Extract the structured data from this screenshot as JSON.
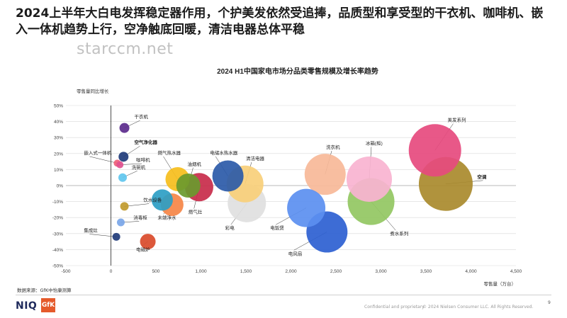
{
  "headline": "2024上半年大白电发挥稳定器作用，个护美发依然受追捧，品质型和享受型的干衣机、咖啡机、嵌入一体机趋势上行，空净触底回暖，清洁电器总体平稳",
  "watermark": "starccm.net",
  "source": "数据来源：GfK中怡康测算",
  "footer": {
    "logo_niq": "NIQ",
    "logo_gfk": "GfK",
    "confidential": "Confidential and proprietary",
    "copyright": "© 2024 Nielsen Consumer LLC. All Rights Reserved.",
    "page_number": "9"
  },
  "chart_data": {
    "type": "scatter",
    "title": "2024 H1中国家电市场分品类零售规模及增长率趋势",
    "xlabel": "零售量（万台）",
    "ylabel": "零售量同比增长",
    "xlim": [
      -500,
      4500
    ],
    "ylim": [
      -50,
      50
    ],
    "x_ticks": [
      "-500",
      "0",
      "500",
      "1,000",
      "1,500",
      "2,000",
      "2,500",
      "3,000",
      "3,500",
      "4,000",
      "4,500"
    ],
    "y_ticks": [
      "50%",
      "40%",
      "30%",
      "20%",
      "10%",
      "0%",
      "-10%",
      "-20%",
      "-30%",
      "-40%",
      "-50%"
    ],
    "grid": "horizontal",
    "points": [
      {
        "label": "干衣机",
        "x": 150,
        "y": 36,
        "size": 14,
        "color": "#5b2a8c",
        "bold": false
      },
      {
        "label": "空气净化器",
        "x": 140,
        "y": 18,
        "size": 14,
        "color": "#1f3b7a",
        "bold": true
      },
      {
        "label": "嵌入式一体机",
        "x": 70,
        "y": 14,
        "size": 10,
        "color": "#f0607a",
        "bold": false
      },
      {
        "label": "咖啡机",
        "x": 100,
        "y": 13,
        "size": 10,
        "color": "#e0508f",
        "bold": false
      },
      {
        "label": "洗碗机",
        "x": 130,
        "y": 5,
        "size": 12,
        "color": "#5fc6ee",
        "bold": false
      },
      {
        "label": "饮水设备",
        "x": 150,
        "y": -13,
        "size": 12,
        "color": "#c09a2e",
        "bold": false
      },
      {
        "label": "消毒柜",
        "x": 110,
        "y": -23,
        "size": 11,
        "color": "#7aa6e8",
        "bold": false
      },
      {
        "label": "集成灶",
        "x": 60,
        "y": -32,
        "size": 11,
        "color": "#1f3b7a",
        "bold": false
      },
      {
        "label": "电磁炉",
        "x": 410,
        "y": -35,
        "size": 22,
        "color": "#d94a2a",
        "bold": false
      },
      {
        "label": "燃气热水器",
        "x": 740,
        "y": 4,
        "size": 34,
        "color": "#f6be1c",
        "bold": false
      },
      {
        "label": "油烟机",
        "x": 860,
        "y": 0,
        "size": 34,
        "color": "#6a9a2e",
        "bold": false
      },
      {
        "label": "燃气灶",
        "x": 980,
        "y": -1,
        "size": 40,
        "color": "#c82b4a",
        "bold": false
      },
      {
        "label": "饮水设备bubble",
        "x": 570,
        "y": -9,
        "size": 30,
        "color": "#2d9ec4",
        "bold": false
      },
      {
        "label": "末端净水",
        "x": 680,
        "y": -12,
        "size": 32,
        "color": "#f58547",
        "bold": false
      },
      {
        "label": "电储水热水器",
        "x": 1300,
        "y": 6,
        "size": 44,
        "color": "#2b5aa8",
        "bold": false
      },
      {
        "label": "清洁电器",
        "x": 1490,
        "y": 1,
        "size": 52,
        "color": "#f9cf7a",
        "bold": false
      },
      {
        "label": "彩电",
        "x": 1510,
        "y": -11,
        "size": 54,
        "color": "#e0e0e0",
        "bold": false
      },
      {
        "label": "电饭煲",
        "x": 2170,
        "y": -14,
        "size": 54,
        "color": "#5b8ff0",
        "bold": false
      },
      {
        "label": "洗衣机",
        "x": 2380,
        "y": 7,
        "size": 58,
        "color": "#f7b898",
        "bold": false
      },
      {
        "label": "电风扇",
        "x": 2400,
        "y": -29,
        "size": 58,
        "color": "#2c5fd1",
        "bold": false
      },
      {
        "label": "冰箱(柜)",
        "x": 2870,
        "y": 4,
        "size": 64,
        "color": "#f8b3d0",
        "bold": false
      },
      {
        "label": "煮水系列",
        "x": 2890,
        "y": -10,
        "size": 66,
        "color": "#92c762",
        "bold": false
      },
      {
        "label": "美发系列",
        "x": 3600,
        "y": 22,
        "size": 74,
        "color": "#e64a7e",
        "bold": false
      },
      {
        "label": "空调",
        "x": 3720,
        "y": 1,
        "size": 76,
        "color": "#a98a2c",
        "bold": true
      }
    ],
    "labels": [
      {
        "text": "干衣机",
        "x": 260,
        "y": 42,
        "bold": false
      },
      {
        "text": "空气净化器",
        "x": 260,
        "y": 26,
        "bold": true
      },
      {
        "text": "嵌入式一体机",
        "x": -300,
        "y": 19.5,
        "bold": false
      },
      {
        "text": "咖啡机",
        "x": 280,
        "y": 15,
        "bold": false
      },
      {
        "text": "洗碗机",
        "x": 230,
        "y": 10.5,
        "bold": false
      },
      {
        "text": "饮水设备",
        "x": 360,
        "y": -10,
        "bold": false
      },
      {
        "text": "消毒柜",
        "x": 250,
        "y": -21,
        "bold": false
      },
      {
        "text": "集成灶",
        "x": -300,
        "y": -29,
        "bold": false
      },
      {
        "text": "电磁炉",
        "x": 280,
        "y": -41,
        "bold": false
      },
      {
        "text": "燃气热水器",
        "x": 520,
        "y": 19.5,
        "bold": false
      },
      {
        "text": "油烟机",
        "x": 850,
        "y": 12.5,
        "bold": false
      },
      {
        "text": "燃气灶",
        "x": 860,
        "y": -17.5,
        "bold": false
      },
      {
        "text": "末端净水",
        "x": 520,
        "y": -21,
        "bold": false
      },
      {
        "text": "电储水热水器",
        "x": 1100,
        "y": 19.5,
        "bold": false
      },
      {
        "text": "清洁电器",
        "x": 1500,
        "y": 16,
        "bold": false
      },
      {
        "text": "彩电",
        "x": 1270,
        "y": -27.5,
        "bold": false
      },
      {
        "text": "电饭煲",
        "x": 1770,
        "y": -27.5,
        "bold": false
      },
      {
        "text": "洗衣机",
        "x": 2390,
        "y": 23,
        "bold": false
      },
      {
        "text": "电风扇",
        "x": 1970,
        "y": -43.5,
        "bold": false
      },
      {
        "text": "冰箱(柜)",
        "x": 2830,
        "y": 25.5,
        "bold": false
      },
      {
        "text": "煮水系列",
        "x": 3100,
        "y": -31,
        "bold": false
      },
      {
        "text": "美发系列",
        "x": 3740,
        "y": 40,
        "bold": false
      },
      {
        "text": "空调",
        "x": 4070,
        "y": 4.5,
        "bold": true
      }
    ]
  }
}
